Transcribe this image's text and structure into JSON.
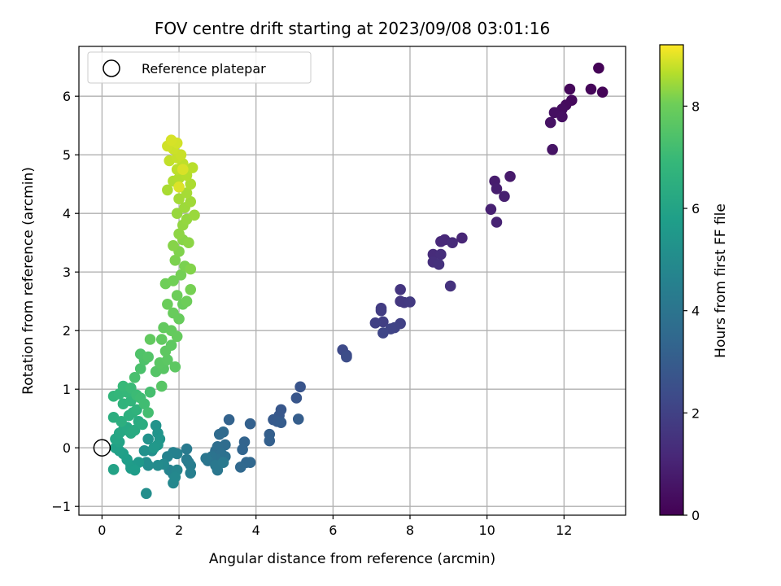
{
  "chart_data": {
    "type": "scatter",
    "title": "FOV centre drift starting at 2023/09/08 03:01:16",
    "xlabel": "Angular distance from reference (arcmin)",
    "ylabel": "Rotation from reference (arcmin)",
    "xlim": [
      -0.6,
      13.6
    ],
    "ylim": [
      -1.15,
      6.85
    ],
    "xticks": [
      "0",
      "2",
      "4",
      "6",
      "8",
      "10",
      "12"
    ],
    "yticks": [
      "−1",
      "0",
      "1",
      "2",
      "3",
      "4",
      "5",
      "6"
    ],
    "grid": true,
    "legend": {
      "placement": "upper-left",
      "entries": [
        "Reference platepar"
      ]
    },
    "reference_point": {
      "x": 0,
      "y": 0,
      "label": "Reference platepar"
    },
    "colorbar": {
      "label": "Hours from first FF file",
      "range": [
        0,
        9.2
      ],
      "ticks": [
        "0",
        "2",
        "4",
        "6",
        "8"
      ],
      "colormap": "viridis"
    },
    "points": [
      {
        "x": 12.9,
        "y": 6.48,
        "h": 0.05
      },
      {
        "x": 13.0,
        "y": 6.07,
        "h": 0.1
      },
      {
        "x": 12.7,
        "y": 6.12,
        "h": 0.15
      },
      {
        "x": 12.15,
        "y": 6.12,
        "h": 0.2
      },
      {
        "x": 12.2,
        "y": 5.93,
        "h": 0.25
      },
      {
        "x": 12.05,
        "y": 5.85,
        "h": 0.3
      },
      {
        "x": 11.95,
        "y": 5.78,
        "h": 0.35
      },
      {
        "x": 11.75,
        "y": 5.72,
        "h": 0.4
      },
      {
        "x": 11.95,
        "y": 5.65,
        "h": 0.45
      },
      {
        "x": 11.65,
        "y": 5.55,
        "h": 0.5
      },
      {
        "x": 11.7,
        "y": 5.09,
        "h": 0.55
      },
      {
        "x": 10.6,
        "y": 4.63,
        "h": 0.75
      },
      {
        "x": 10.2,
        "y": 4.55,
        "h": 0.8
      },
      {
        "x": 10.25,
        "y": 4.42,
        "h": 0.85
      },
      {
        "x": 10.45,
        "y": 4.29,
        "h": 0.9
      },
      {
        "x": 10.1,
        "y": 4.07,
        "h": 0.95
      },
      {
        "x": 10.25,
        "y": 3.85,
        "h": 1.0
      },
      {
        "x": 9.35,
        "y": 3.58,
        "h": 1.1
      },
      {
        "x": 8.9,
        "y": 3.55,
        "h": 1.15
      },
      {
        "x": 8.8,
        "y": 3.52,
        "h": 1.2
      },
      {
        "x": 9.1,
        "y": 3.5,
        "h": 1.25
      },
      {
        "x": 8.6,
        "y": 3.3,
        "h": 1.3
      },
      {
        "x": 8.8,
        "y": 3.3,
        "h": 1.35
      },
      {
        "x": 8.6,
        "y": 3.17,
        "h": 1.4
      },
      {
        "x": 8.75,
        "y": 3.13,
        "h": 1.45
      },
      {
        "x": 9.05,
        "y": 2.76,
        "h": 1.5
      },
      {
        "x": 7.75,
        "y": 2.7,
        "h": 1.6
      },
      {
        "x": 7.75,
        "y": 2.5,
        "h": 1.65
      },
      {
        "x": 7.85,
        "y": 2.48,
        "h": 1.7
      },
      {
        "x": 8.0,
        "y": 2.49,
        "h": 1.75
      },
      {
        "x": 7.25,
        "y": 2.38,
        "h": 1.8
      },
      {
        "x": 7.25,
        "y": 2.34,
        "h": 1.85
      },
      {
        "x": 7.3,
        "y": 2.15,
        "h": 1.9
      },
      {
        "x": 7.1,
        "y": 2.13,
        "h": 1.95
      },
      {
        "x": 7.75,
        "y": 2.12,
        "h": 2.0
      },
      {
        "x": 7.6,
        "y": 2.05,
        "h": 2.05
      },
      {
        "x": 7.5,
        "y": 2.03,
        "h": 2.1
      },
      {
        "x": 7.3,
        "y": 1.96,
        "h": 2.15
      },
      {
        "x": 6.25,
        "y": 1.67,
        "h": 2.3
      },
      {
        "x": 6.35,
        "y": 1.58,
        "h": 2.35
      },
      {
        "x": 6.35,
        "y": 1.55,
        "h": 2.4
      },
      {
        "x": 5.15,
        "y": 1.04,
        "h": 2.7
      },
      {
        "x": 5.05,
        "y": 0.85,
        "h": 2.75
      },
      {
        "x": 4.65,
        "y": 0.65,
        "h": 2.8
      },
      {
        "x": 4.6,
        "y": 0.55,
        "h": 2.85
      },
      {
        "x": 4.45,
        "y": 0.48,
        "h": 2.9
      },
      {
        "x": 4.55,
        "y": 0.45,
        "h": 2.95
      },
      {
        "x": 4.65,
        "y": 0.43,
        "h": 3.0
      },
      {
        "x": 5.1,
        "y": 0.49,
        "h": 3.05
      },
      {
        "x": 4.35,
        "y": 0.23,
        "h": 3.1
      },
      {
        "x": 4.35,
        "y": 0.12,
        "h": 3.15
      },
      {
        "x": 3.85,
        "y": 0.41,
        "h": 3.2
      },
      {
        "x": 3.3,
        "y": 0.48,
        "h": 3.25
      },
      {
        "x": 3.7,
        "y": 0.1,
        "h": 3.3
      },
      {
        "x": 3.65,
        "y": -0.03,
        "h": 3.35
      },
      {
        "x": 3.75,
        "y": -0.25,
        "h": 3.4
      },
      {
        "x": 3.85,
        "y": -0.25,
        "h": 3.45
      },
      {
        "x": 3.6,
        "y": -0.33,
        "h": 3.5
      },
      {
        "x": 3.15,
        "y": 0.27,
        "h": 3.55
      },
      {
        "x": 3.05,
        "y": 0.23,
        "h": 3.6
      },
      {
        "x": 3.2,
        "y": 0.05,
        "h": 3.65
      },
      {
        "x": 3.0,
        "y": 0.02,
        "h": 3.7
      },
      {
        "x": 2.95,
        "y": -0.05,
        "h": 3.75
      },
      {
        "x": 3.1,
        "y": -0.1,
        "h": 3.8
      },
      {
        "x": 3.2,
        "y": -0.15,
        "h": 3.85
      },
      {
        "x": 3.0,
        "y": -0.2,
        "h": 3.9
      },
      {
        "x": 2.85,
        "y": -0.15,
        "h": 3.95
      },
      {
        "x": 2.75,
        "y": -0.22,
        "h": 4.0
      },
      {
        "x": 2.7,
        "y": -0.18,
        "h": 4.05
      },
      {
        "x": 3.0,
        "y": -0.38,
        "h": 4.1
      },
      {
        "x": 2.95,
        "y": -0.3,
        "h": 4.15
      },
      {
        "x": 3.15,
        "y": -0.25,
        "h": 4.2
      },
      {
        "x": 2.2,
        "y": -0.02,
        "h": 4.25
      },
      {
        "x": 2.2,
        "y": -0.2,
        "h": 4.3
      },
      {
        "x": 2.25,
        "y": -0.25,
        "h": 4.35
      },
      {
        "x": 2.3,
        "y": -0.3,
        "h": 4.4
      },
      {
        "x": 2.3,
        "y": -0.43,
        "h": 4.45
      },
      {
        "x": 1.95,
        "y": -0.1,
        "h": 4.5
      },
      {
        "x": 1.85,
        "y": -0.08,
        "h": 4.55
      },
      {
        "x": 1.7,
        "y": -0.15,
        "h": 4.6
      },
      {
        "x": 1.75,
        "y": -0.38,
        "h": 4.65
      },
      {
        "x": 1.85,
        "y": -0.45,
        "h": 4.7
      },
      {
        "x": 1.95,
        "y": -0.38,
        "h": 4.75
      },
      {
        "x": 1.85,
        "y": -0.6,
        "h": 4.8
      },
      {
        "x": 1.9,
        "y": -0.5,
        "h": 4.85
      },
      {
        "x": 1.6,
        "y": -0.28,
        "h": 4.9
      },
      {
        "x": 1.45,
        "y": -0.3,
        "h": 4.95
      },
      {
        "x": 1.2,
        "y": -0.3,
        "h": 5.0
      },
      {
        "x": 1.15,
        "y": -0.25,
        "h": 5.05
      },
      {
        "x": 1.15,
        "y": -0.78,
        "h": 5.1
      },
      {
        "x": 1.3,
        "y": -0.05,
        "h": 5.15
      },
      {
        "x": 1.1,
        "y": -0.05,
        "h": 5.2
      },
      {
        "x": 1.2,
        "y": 0.15,
        "h": 5.25
      },
      {
        "x": 1.4,
        "y": 0.38,
        "h": 5.3
      },
      {
        "x": 1.45,
        "y": 0.25,
        "h": 5.35
      },
      {
        "x": 1.5,
        "y": 0.15,
        "h": 5.4
      },
      {
        "x": 1.45,
        "y": 0.05,
        "h": 5.45
      },
      {
        "x": 1.35,
        "y": 0.0,
        "h": 5.5
      },
      {
        "x": 0.95,
        "y": -0.25,
        "h": 5.55
      },
      {
        "x": 0.75,
        "y": -0.3,
        "h": 5.6
      },
      {
        "x": 0.75,
        "y": -0.35,
        "h": 5.65
      },
      {
        "x": 0.85,
        "y": -0.38,
        "h": 5.7
      },
      {
        "x": 0.65,
        "y": -0.2,
        "h": 5.75
      },
      {
        "x": 0.55,
        "y": -0.1,
        "h": 5.8
      },
      {
        "x": 0.45,
        "y": -0.05,
        "h": 5.85
      },
      {
        "x": 0.35,
        "y": 0.0,
        "h": 5.9
      },
      {
        "x": 0.3,
        "y": -0.37,
        "h": 5.95
      },
      {
        "x": 0.45,
        "y": 0.1,
        "h": 6.0
      },
      {
        "x": 0.35,
        "y": 0.15,
        "h": 6.05
      },
      {
        "x": 0.45,
        "y": 0.25,
        "h": 6.1
      },
      {
        "x": 0.55,
        "y": 0.3,
        "h": 6.15
      },
      {
        "x": 0.65,
        "y": 0.35,
        "h": 6.2
      },
      {
        "x": 0.75,
        "y": 0.25,
        "h": 6.25
      },
      {
        "x": 0.85,
        "y": 0.3,
        "h": 6.3
      },
      {
        "x": 0.95,
        "y": 0.45,
        "h": 6.35
      },
      {
        "x": 1.05,
        "y": 0.4,
        "h": 6.4
      },
      {
        "x": 0.3,
        "y": 0.52,
        "h": 6.45
      },
      {
        "x": 0.5,
        "y": 0.45,
        "h": 6.5
      },
      {
        "x": 0.7,
        "y": 0.55,
        "h": 6.55
      },
      {
        "x": 0.8,
        "y": 0.6,
        "h": 6.6
      },
      {
        "x": 0.9,
        "y": 0.65,
        "h": 6.65
      },
      {
        "x": 0.55,
        "y": 0.75,
        "h": 6.7
      },
      {
        "x": 0.75,
        "y": 0.8,
        "h": 6.75
      },
      {
        "x": 0.3,
        "y": 0.88,
        "h": 6.8
      },
      {
        "x": 0.45,
        "y": 0.92,
        "h": 6.85
      },
      {
        "x": 0.65,
        "y": 0.95,
        "h": 6.9
      },
      {
        "x": 0.55,
        "y": 1.05,
        "h": 6.95
      },
      {
        "x": 0.75,
        "y": 1.02,
        "h": 7.0
      },
      {
        "x": 0.9,
        "y": 0.9,
        "h": 7.05
      },
      {
        "x": 1.0,
        "y": 0.85,
        "h": 7.1
      },
      {
        "x": 1.1,
        "y": 0.75,
        "h": 7.15
      },
      {
        "x": 1.2,
        "y": 0.6,
        "h": 7.2
      },
      {
        "x": 1.25,
        "y": 0.95,
        "h": 7.25
      },
      {
        "x": 0.85,
        "y": 1.2,
        "h": 7.3
      },
      {
        "x": 1.0,
        "y": 1.35,
        "h": 7.35
      },
      {
        "x": 1.1,
        "y": 1.5,
        "h": 7.4
      },
      {
        "x": 1.0,
        "y": 1.6,
        "h": 7.45
      },
      {
        "x": 1.2,
        "y": 1.55,
        "h": 7.5
      },
      {
        "x": 1.4,
        "y": 1.3,
        "h": 7.55
      },
      {
        "x": 1.55,
        "y": 1.05,
        "h": 7.6
      },
      {
        "x": 1.6,
        "y": 1.35,
        "h": 7.62
      },
      {
        "x": 1.5,
        "y": 1.45,
        "h": 7.65
      },
      {
        "x": 1.7,
        "y": 1.5,
        "h": 7.68
      },
      {
        "x": 1.9,
        "y": 1.38,
        "h": 7.7
      },
      {
        "x": 1.65,
        "y": 1.65,
        "h": 7.72
      },
      {
        "x": 1.8,
        "y": 1.75,
        "h": 7.75
      },
      {
        "x": 1.55,
        "y": 1.85,
        "h": 7.78
      },
      {
        "x": 1.25,
        "y": 1.85,
        "h": 7.8
      },
      {
        "x": 1.6,
        "y": 2.05,
        "h": 7.82
      },
      {
        "x": 1.8,
        "y": 2.0,
        "h": 7.85
      },
      {
        "x": 1.95,
        "y": 1.9,
        "h": 7.87
      },
      {
        "x": 2.0,
        "y": 2.2,
        "h": 7.9
      },
      {
        "x": 1.85,
        "y": 2.3,
        "h": 7.92
      },
      {
        "x": 2.1,
        "y": 2.45,
        "h": 7.95
      },
      {
        "x": 1.7,
        "y": 2.45,
        "h": 7.97
      },
      {
        "x": 1.95,
        "y": 2.6,
        "h": 8.0
      },
      {
        "x": 2.2,
        "y": 2.5,
        "h": 8.02
      },
      {
        "x": 1.65,
        "y": 2.8,
        "h": 8.05
      },
      {
        "x": 1.85,
        "y": 2.85,
        "h": 8.07
      },
      {
        "x": 2.05,
        "y": 2.95,
        "h": 8.1
      },
      {
        "x": 2.3,
        "y": 2.7,
        "h": 8.12
      },
      {
        "x": 2.15,
        "y": 3.1,
        "h": 8.15
      },
      {
        "x": 1.9,
        "y": 3.2,
        "h": 8.17
      },
      {
        "x": 2.0,
        "y": 3.35,
        "h": 8.2
      },
      {
        "x": 2.3,
        "y": 3.05,
        "h": 8.22
      },
      {
        "x": 1.85,
        "y": 3.45,
        "h": 8.25
      },
      {
        "x": 2.1,
        "y": 3.55,
        "h": 8.27
      },
      {
        "x": 2.25,
        "y": 3.5,
        "h": 8.3
      },
      {
        "x": 2.0,
        "y": 3.65,
        "h": 8.32
      },
      {
        "x": 2.1,
        "y": 3.8,
        "h": 8.35
      },
      {
        "x": 2.2,
        "y": 3.9,
        "h": 8.37
      },
      {
        "x": 1.95,
        "y": 4.0,
        "h": 8.4
      },
      {
        "x": 2.4,
        "y": 3.97,
        "h": 8.42
      },
      {
        "x": 2.15,
        "y": 4.1,
        "h": 8.45
      },
      {
        "x": 2.3,
        "y": 4.2,
        "h": 8.47
      },
      {
        "x": 2.0,
        "y": 4.25,
        "h": 8.5
      },
      {
        "x": 2.2,
        "y": 4.35,
        "h": 8.52
      },
      {
        "x": 1.7,
        "y": 4.4,
        "h": 8.55
      },
      {
        "x": 2.3,
        "y": 4.5,
        "h": 8.57
      },
      {
        "x": 1.85,
        "y": 4.55,
        "h": 8.6
      },
      {
        "x": 2.0,
        "y": 4.6,
        "h": 8.62
      },
      {
        "x": 2.2,
        "y": 4.65,
        "h": 8.65
      },
      {
        "x": 2.35,
        "y": 4.78,
        "h": 8.67
      },
      {
        "x": 1.95,
        "y": 4.75,
        "h": 8.7
      },
      {
        "x": 2.1,
        "y": 4.85,
        "h": 8.72
      },
      {
        "x": 1.75,
        "y": 4.9,
        "h": 8.75
      },
      {
        "x": 1.95,
        "y": 4.95,
        "h": 8.77
      },
      {
        "x": 2.05,
        "y": 5.0,
        "h": 8.8
      },
      {
        "x": 1.85,
        "y": 5.1,
        "h": 8.82
      },
      {
        "x": 1.7,
        "y": 5.15,
        "h": 8.85
      },
      {
        "x": 1.95,
        "y": 5.2,
        "h": 8.87
      },
      {
        "x": 1.8,
        "y": 5.25,
        "h": 8.9
      },
      {
        "x": 2.1,
        "y": 4.75,
        "h": 8.92
      },
      {
        "x": 2.0,
        "y": 4.45,
        "h": 8.95
      }
    ]
  }
}
